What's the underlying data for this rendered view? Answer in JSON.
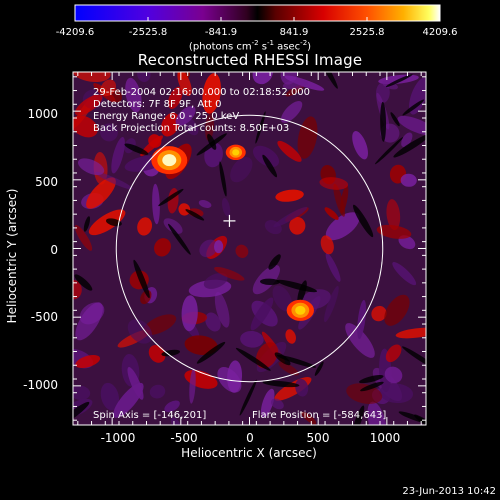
{
  "window": {
    "title": "Reconstructed RHESSI Image"
  },
  "colorbar": {
    "tick_labels": [
      "-4209.6",
      "-2525.8",
      "-841.9",
      "841.9",
      "2525.8",
      "4209.6"
    ],
    "min": -4209.6,
    "max": 4209.6,
    "units_prefix": "(photons cm",
    "units_exp1": "-2",
    "units_s": " s",
    "units_exp2": "-1",
    "units_asec": " asec",
    "units_exp3": "-2",
    "units_suffix": ")",
    "colors": {
      "low": "#0000ff",
      "mid_low": "#8000c0",
      "zero": "#000000",
      "mid_high": "#c00000",
      "high_red": "#ff2000",
      "high_orange": "#ff8c00",
      "high_yellow": "#ffe000",
      "top": "#ffffff"
    }
  },
  "info": {
    "time_range": "29-Feb-2004 02:16:00.000 to 02:18:52.000",
    "detectors": "Detectors: 7F 8F 9F, Att 0",
    "energy": "Energy Range: 6.0 - 25.0 keV",
    "method": "Back Projection    Total counts: 8.50E+03"
  },
  "footer": {
    "spin_axis": "Spin Axis = [-146,201]",
    "flare_position": "Flare Position = [-584,643]"
  },
  "axes": {
    "x_label": "Heliocentric X (arcsec)",
    "y_label": "Heliocentric Y (arcsec)",
    "x_ticks": [
      "-1000",
      "-500",
      "0",
      "500",
      "1000"
    ],
    "y_ticks": [
      "1000",
      "500",
      "0",
      "-500",
      "-1000"
    ]
  },
  "stamp": "23-Jun-2013 10:42",
  "chart_data": {
    "type": "heatmap",
    "title": "Reconstructed RHESSI Image",
    "xlabel": "Heliocentric X (arcsec)",
    "ylabel": "Heliocentric Y (arcsec)",
    "xlim": [
      -1285,
      1285
    ],
    "ylim": [
      -1285,
      1285
    ],
    "x_ticks": [
      -1000,
      -500,
      0,
      500,
      1000
    ],
    "y_ticks": [
      -1000,
      -500,
      0,
      500,
      1000
    ],
    "value_range": [
      -4209.6,
      4209.6
    ],
    "solar_limb_radius_arcsec": 970,
    "spin_axis": [
      -146,
      201
    ],
    "flare_position": [
      -584,
      643
    ],
    "bright_sources": [
      {
        "x": -584,
        "y": 643,
        "value": 4209.6
      },
      {
        "x": 370,
        "y": -450,
        "value": 2900
      },
      {
        "x": -100,
        "y": 700,
        "value": 1800
      }
    ]
  }
}
